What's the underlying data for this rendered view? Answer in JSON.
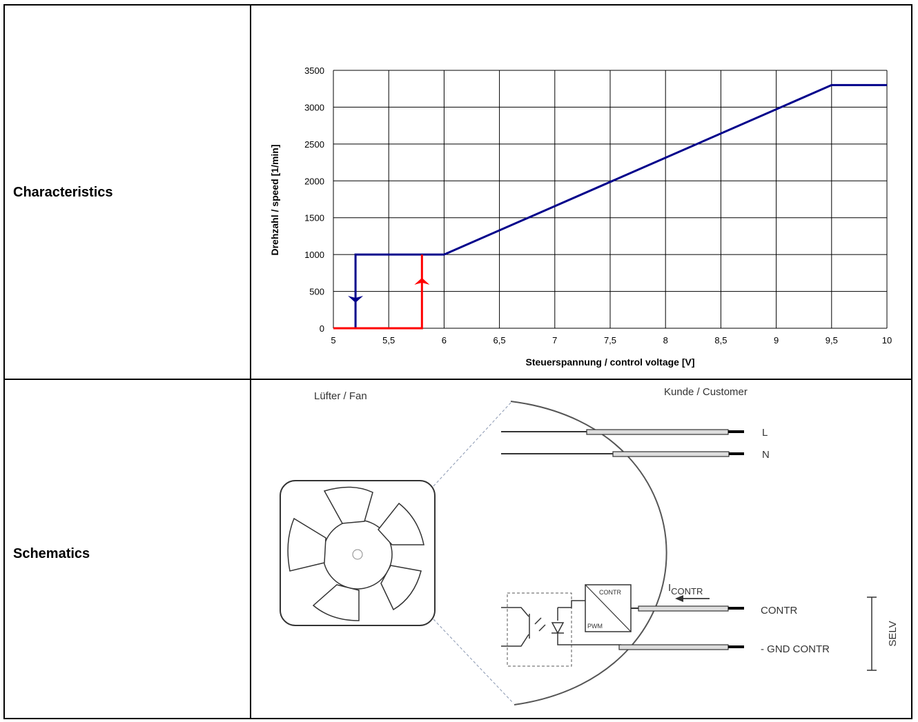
{
  "rows": {
    "characteristics_label": "Characteristics",
    "schematics_label": "Schematics"
  },
  "chart_data": {
    "type": "line",
    "xlabel": "Steuerspannung / control voltage [V]",
    "ylabel": "Drehzahl / speed [1/min]",
    "xlim": [
      5,
      10
    ],
    "ylim": [
      0,
      3500
    ],
    "x_ticks": [
      "5",
      "5,5",
      "6",
      "6,5",
      "7",
      "7,5",
      "8",
      "8,5",
      "9",
      "9,5",
      "10"
    ],
    "y_ticks": [
      "0",
      "500",
      "1000",
      "1500",
      "2000",
      "2500",
      "3000",
      "3500"
    ],
    "grid": true,
    "series": [
      {
        "color": "#00008b",
        "x": [
          5.2,
          5.2,
          6,
          9.5,
          10
        ],
        "y": [
          0,
          1000,
          1000,
          3300,
          3300
        ],
        "arrow": {
          "x": 5.2,
          "y": 430,
          "direction": "down"
        }
      },
      {
        "color": "#ff0000",
        "x": [
          5,
          5.8,
          5.8
        ],
        "y": [
          0,
          0,
          1000
        ],
        "arrow": {
          "x": 5.8,
          "y": 600,
          "direction": "up"
        }
      }
    ]
  },
  "schematic": {
    "fan_label": "Lüfter / Fan",
    "customer_label": "Kunde / Customer",
    "wire_L": "L",
    "wire_N": "N",
    "contr_label": "CONTR",
    "gnd_label": "- GND CONTR",
    "selv_label": "SELV",
    "current_label": "I",
    "current_sub": "CONTR",
    "block_top": "CONTR",
    "block_bottom": "PWM"
  }
}
